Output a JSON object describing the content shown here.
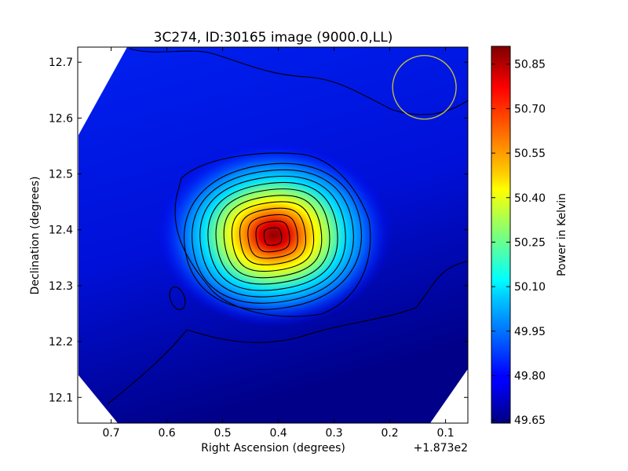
{
  "chart_data": {
    "type": "heatmap",
    "title": "3C274, ID:30165 image (9000.0,LL)",
    "xlabel": "Right Ascension (degrees)",
    "ylabel": "Declination (degrees)",
    "x_offset_label": "+1.873e2",
    "xlim": [
      0.76,
      0.06
    ],
    "ylim": [
      12.054,
      12.727
    ],
    "x_ticks": [
      0.7,
      0.6,
      0.5,
      0.4,
      0.3,
      0.2,
      0.1
    ],
    "y_ticks": [
      12.1,
      12.2,
      12.3,
      12.4,
      12.5,
      12.6,
      12.7
    ],
    "colorbar": {
      "label": "Power in Kelvin",
      "min": 49.64,
      "max": 50.91,
      "ticks": [
        49.65,
        49.8,
        49.95,
        50.1,
        50.25,
        50.4,
        50.55,
        50.7,
        50.85
      ],
      "colormap": "jet"
    },
    "peak": {
      "ra": 0.41,
      "dec": 12.388,
      "value": 50.89
    },
    "background_level": 49.8,
    "beam_circle": {
      "ra": 0.138,
      "dec": 12.655,
      "radius_deg": 0.057,
      "color": "#c8c832"
    },
    "contour_levels": 13,
    "grid": false,
    "legend": "none"
  }
}
